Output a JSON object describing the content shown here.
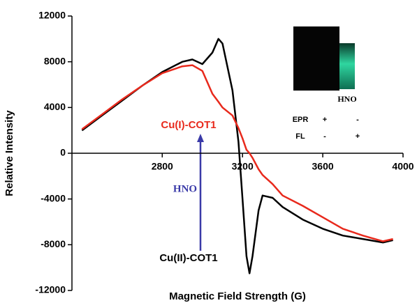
{
  "chart_data": {
    "type": "line",
    "xlabel": "Magnetic Field Strength (G)",
    "ylabel": "Relative Intensity",
    "x": [
      2400,
      2500,
      2600,
      2700,
      2800,
      2900,
      2950,
      3000,
      3050,
      3080,
      3100,
      3150,
      3180,
      3200,
      3220,
      3235,
      3250,
      3280,
      3300,
      3350,
      3400,
      3500,
      3600,
      3700,
      3800,
      3900,
      3950
    ],
    "series": [
      {
        "name": "Cu(II)-COT1",
        "color": "#000000",
        "values": [
          2000,
          3300,
          4600,
          5900,
          7100,
          8000,
          8200,
          7800,
          8800,
          10000,
          9600,
          5500,
          1000,
          -4000,
          -9000,
          -10500,
          -9000,
          -5000,
          -3700,
          -3900,
          -4700,
          -5800,
          -6600,
          -7200,
          -7500,
          -7800,
          -7600
        ]
      },
      {
        "name": "Cu(I)-COT1",
        "color": "#e8291c",
        "values": [
          2100,
          3400,
          4700,
          5900,
          7000,
          7600,
          7700,
          7200,
          5200,
          4500,
          4000,
          3300,
          2200,
          1300,
          300,
          0,
          -400,
          -1400,
          -1900,
          -2700,
          -3700,
          -4600,
          -5600,
          -6600,
          -7200,
          -7700,
          -7500
        ]
      }
    ],
    "xlim": [
      2350,
      4000
    ],
    "xticks": [
      2800,
      3200,
      3600,
      4000
    ],
    "ylim": [
      -12000,
      12000
    ],
    "yticks": [
      12000,
      8000,
      4000,
      0,
      -4000,
      -8000,
      -12000
    ],
    "annotation": "HNO",
    "inset": {
      "label": "HNO",
      "rows": [
        [
          "EPR",
          "+",
          "-"
        ],
        [
          "FL",
          "-",
          "+"
        ]
      ]
    }
  }
}
